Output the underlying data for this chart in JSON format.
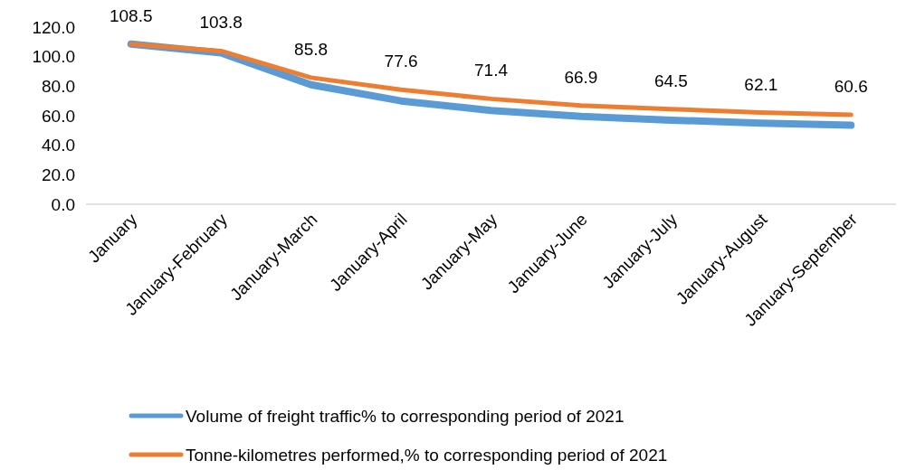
{
  "chart_data": {
    "type": "line",
    "categories": [
      "January",
      "January-February",
      "January-March",
      "January-April",
      "January-May",
      "January-June",
      "January-July",
      "January-August",
      "January-September"
    ],
    "series": [
      {
        "name": "Volume of freight traffic% to corresponding period of 2021",
        "color": "#5b9bd5",
        "values": [
          108.5,
          102.5,
          81,
          70,
          63.5,
          59.5,
          57,
          55,
          53.5
        ]
      },
      {
        "name": "Tonne-kilometres performed,% to corresponding period of 2021",
        "color": "#ed7d31",
        "values": [
          108.5,
          103.8,
          85.8,
          77.6,
          71.4,
          66.9,
          64.5,
          62.1,
          60.6
        ],
        "value_labels": [
          "108.5",
          "103.8",
          "85.8",
          "77.6",
          "71.4",
          "66.9",
          "64.5",
          "62.1",
          "60.6"
        ]
      }
    ],
    "ylim": [
      0,
      120
    ],
    "yticks": [
      {
        "value": 0,
        "label": "0.0"
      },
      {
        "value": 20,
        "label": "20.0"
      },
      {
        "value": 40,
        "label": "40.0"
      },
      {
        "value": 60,
        "label": "60.0"
      },
      {
        "value": 80,
        "label": "80.0"
      },
      {
        "value": 100,
        "label": "100.0"
      },
      {
        "value": 120,
        "label": "120.0"
      }
    ],
    "grid": false,
    "legend": "bottom",
    "marker": "none",
    "line_style": "solid"
  }
}
